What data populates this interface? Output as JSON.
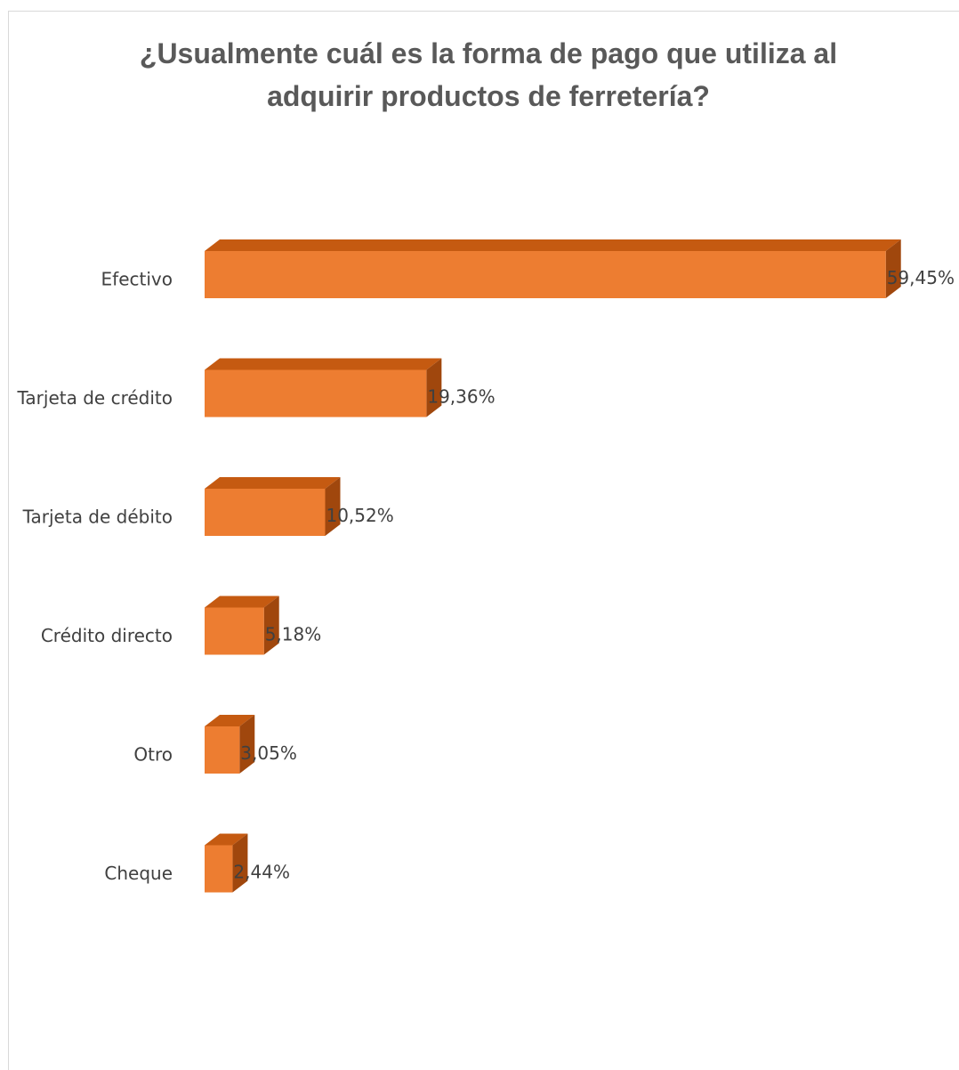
{
  "chart_data": {
    "type": "bar",
    "orientation": "horizontal",
    "style": "3d",
    "title": "¿Usualmente cuál es la forma de pago que utiliza al adquirir productos de ferretería?",
    "categories": [
      "Efectivo",
      "Tarjeta de crédito",
      "Tarjeta de débito",
      "Crédito directo",
      "Otro",
      "Cheque"
    ],
    "values": [
      59.45,
      19.36,
      10.52,
      5.18,
      3.05,
      2.44
    ],
    "value_labels": [
      "59,45%",
      "19,36%",
      "10,52%",
      "5,18%",
      "3,05%",
      "2,44%"
    ],
    "xlim": [
      0,
      60
    ],
    "grid": false,
    "legend": "none",
    "colors": {
      "bar_front": "#ed7d31",
      "bar_top": "#c55a11",
      "bar_side": "#a0470d"
    }
  }
}
